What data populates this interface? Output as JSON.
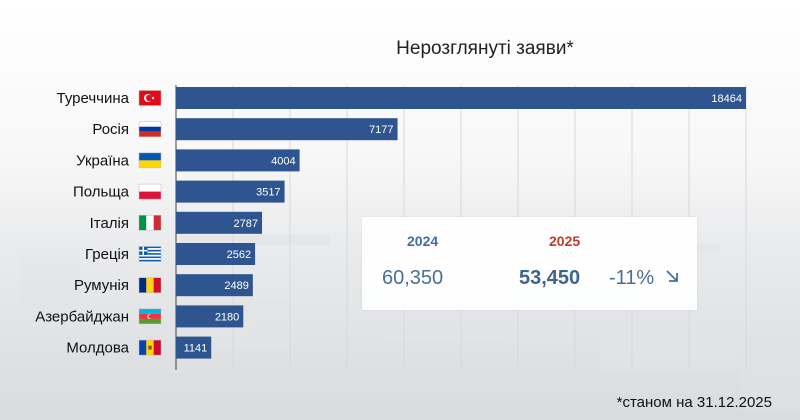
{
  "chart_data": {
    "type": "bar",
    "orientation": "horizontal",
    "title": "Нерозглянуті заяви*",
    "categories": [
      "Туреччина",
      "Росія",
      "Україна",
      "Польща",
      "Італія",
      "Греція",
      "Румунія",
      "Азербайджан",
      "Молдова"
    ],
    "flag_icons": [
      "turkey-flag-icon",
      "russia-flag-icon",
      "ukraine-flag-icon",
      "poland-flag-icon",
      "italy-flag-icon",
      "greece-flag-icon",
      "romania-flag-icon",
      "azerbaijan-flag-icon",
      "moldova-flag-icon"
    ],
    "values": [
      18464,
      7177,
      4004,
      3517,
      2787,
      2562,
      2489,
      2180,
      1141
    ],
    "value_labels": [
      "18464",
      "7177",
      "4004",
      "3517",
      "2787",
      "2562",
      "2489",
      "2180",
      "1141"
    ],
    "bar_color": "#2e5590",
    "grid": true,
    "xlim": [
      0,
      18464
    ]
  },
  "summary": {
    "year_prev": "2024",
    "year_curr": "2025",
    "value_prev": "60,350",
    "value_curr": "53,450",
    "change": "-11%",
    "year_prev_color": "#3d6ea5",
    "year_curr_color": "#c0392b",
    "change_icon": "arrow-down-right-icon"
  },
  "footnote": "*станом на 31.12.2025"
}
